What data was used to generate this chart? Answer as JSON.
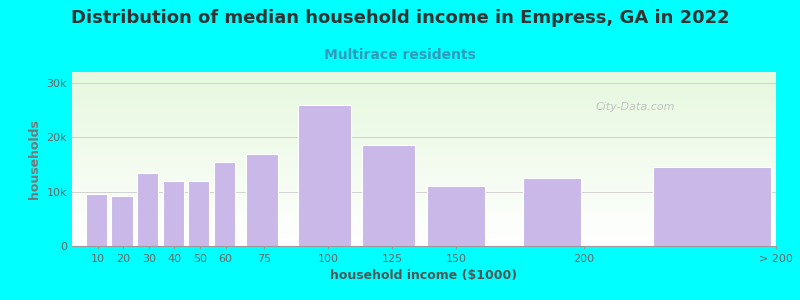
{
  "title": "Distribution of median household income in Empress, GA in 2022",
  "subtitle": "Multirace residents",
  "xlabel": "household income ($1000)",
  "ylabel": "households",
  "background_color": "#00FFFF",
  "bar_color": "#c9b8e8",
  "bar_edge_color": "#ffffff",
  "categories": [
    "10",
    "20",
    "30",
    "40",
    "50",
    "60",
    "75",
    "100",
    "125",
    "150",
    "200",
    "> 200"
  ],
  "values": [
    9500,
    9200,
    13500,
    12000,
    12000,
    15500,
    17000,
    26000,
    18500,
    11000,
    12500,
    14500
  ],
  "bar_lefts": [
    5,
    15,
    25,
    35,
    45,
    55,
    67.5,
    87.5,
    112.5,
    137.5,
    175,
    225
  ],
  "bar_widths": [
    9,
    9,
    9,
    9,
    9,
    9,
    13.5,
    22.5,
    22.5,
    25,
    25,
    50
  ],
  "xlim": [
    0,
    275
  ],
  "ylim": [
    0,
    32000
  ],
  "yticks": [
    0,
    10000,
    20000,
    30000
  ],
  "ytick_labels": [
    "0",
    "10k",
    "20k",
    "30k"
  ],
  "xtick_positions": [
    10,
    20,
    30,
    40,
    50,
    60,
    75,
    100,
    125,
    150,
    200,
    275
  ],
  "xtick_labels": [
    "10",
    "20",
    "30",
    "40",
    "50",
    "60",
    "75",
    "100",
    "125",
    "150",
    "200",
    "> 200"
  ],
  "watermark": "City-Data.com",
  "title_fontsize": 13,
  "subtitle_fontsize": 10,
  "axis_label_fontsize": 9,
  "tick_fontsize": 8,
  "title_color": "#333333",
  "subtitle_color": "#3399bb",
  "ylabel_color": "#777777",
  "xlabel_color": "#555555",
  "tick_color": "#666666"
}
